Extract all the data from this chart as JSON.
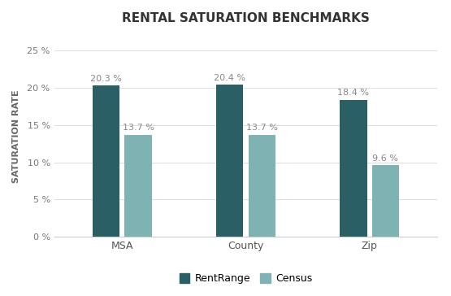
{
  "title": "RENTAL SATURATION BENCHMARKS",
  "categories": [
    "MSA",
    "County",
    "Zip"
  ],
  "rentrange_values": [
    20.3,
    20.4,
    18.4
  ],
  "census_values": [
    13.7,
    13.7,
    9.6
  ],
  "rentrange_color": "#2b5f66",
  "census_color": "#7fb3b3",
  "ylabel": "SATURATION RATE",
  "ylim": [
    0,
    27
  ],
  "yticks": [
    0,
    5,
    10,
    15,
    20,
    25
  ],
  "ytick_labels": [
    "0 %",
    "5 %",
    "10 %",
    "15 %",
    "20 %",
    "25 %"
  ],
  "bar_width": 0.22,
  "bar_gap": 0.04,
  "background_color": "#ffffff",
  "title_fontsize": 11,
  "label_fontsize": 8,
  "axis_fontsize": 8,
  "legend_labels": [
    "RentRange",
    "Census"
  ],
  "annotation_fontsize": 8,
  "annotation_color": "#888888"
}
